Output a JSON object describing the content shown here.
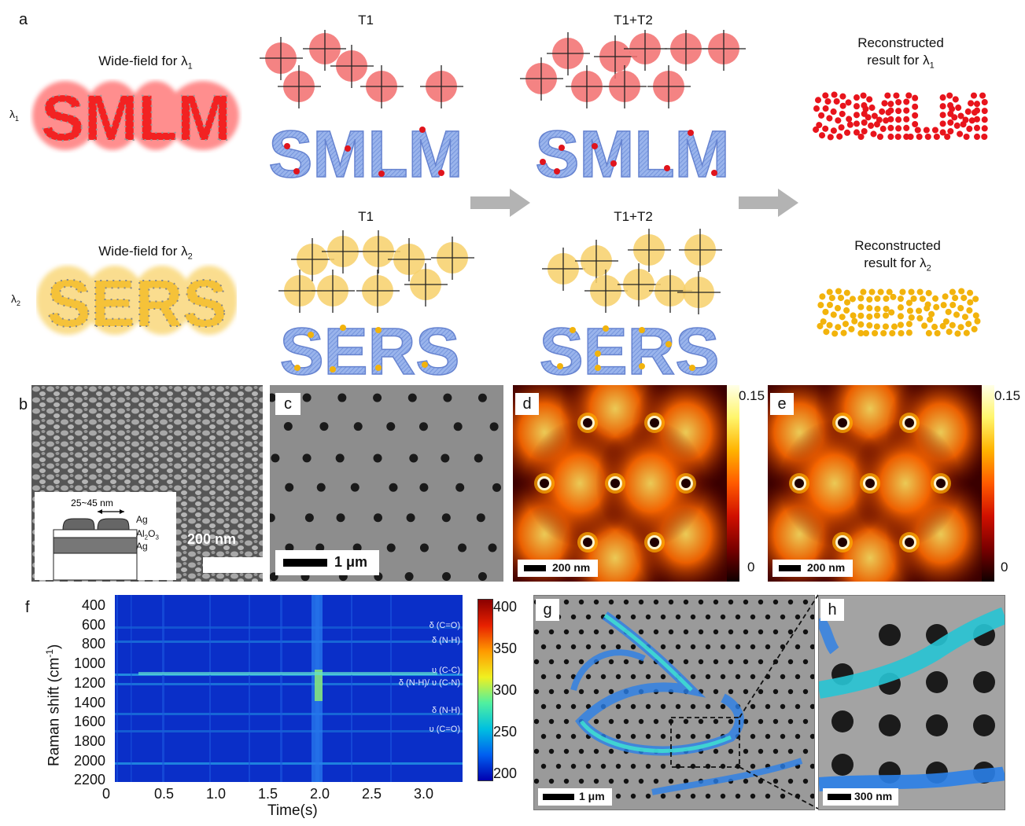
{
  "panel_a": {
    "label": "a",
    "wf1": "Wide-field for",
    "wf1_sym": "λ",
    "wf1_sub": "1",
    "wf2": "Wide-field for",
    "wf2_sym": "λ",
    "wf2_sub": "2",
    "row1_sym": "λ",
    "row1_sub": "1",
    "row2_sym": "λ",
    "row2_sub": "2",
    "smlm": "SMLM",
    "sers": "SERS",
    "t1": "T1",
    "t12": "T1+T2",
    "recon1_l1": "Reconstructed",
    "recon1_l2": "result for",
    "recon_sym": "λ",
    "recon1_sub": "1",
    "recon2_l1": "Reconstructed",
    "recon2_l2": "result for",
    "recon2_sub": "2",
    "red": "#e8141c",
    "yellow": "#f2b30c",
    "blue": "#7a9ce0"
  },
  "panel_b": {
    "label": "b",
    "dim": "25~45 nm",
    "layer1": "Ag",
    "layer2": "Al",
    "layer2_sub": "2",
    "layer2_o": "O",
    "layer2_sub2": "3",
    "layer3": "Ag",
    "scale": "200 nm"
  },
  "panel_c": {
    "label": "c",
    "scale": "1 μm"
  },
  "panel_d": {
    "label": "d",
    "scale": "200 nm",
    "cmax": "0.15",
    "cmin": "0"
  },
  "panel_e": {
    "label": "e",
    "scale": "200 nm",
    "cmax": "0.15",
    "cmin": "0"
  },
  "panel_f": {
    "label": "f",
    "ylabel": "Raman shift (cm",
    "ylabel_sup": "-1",
    "ylabel_end": ")",
    "xlabel": "Time(s)",
    "yticks": [
      "400",
      "600",
      "800",
      "1000",
      "1200",
      "1400",
      "1600",
      "1800",
      "2000",
      "2200"
    ],
    "xticks": [
      "0",
      "0.5",
      "1.0",
      "1.5",
      "2.0",
      "2.5",
      "3.0"
    ],
    "cticks": [
      "400",
      "350",
      "300",
      "250",
      "200"
    ],
    "annotations": [
      "δ (C=O)",
      "δ (N-H)",
      "υ (C-C)",
      "δ (N-H)/ υ (C-N)",
      "δ (N-H)",
      "υ (C=O)"
    ]
  },
  "panel_g": {
    "label": "g",
    "scale": "1 μm"
  },
  "panel_h": {
    "label": "h",
    "scale": "300 nm"
  }
}
